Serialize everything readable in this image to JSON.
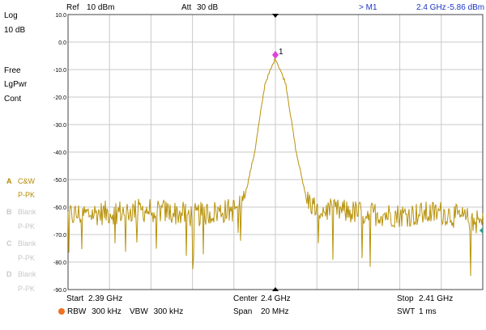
{
  "header": {
    "ref_label": "Ref",
    "ref_value": "10 dBm",
    "att_label": "Att",
    "att_value": "30 dB",
    "marker_label": "> M1",
    "marker_freq": "2.4 GHz",
    "marker_level": "-5.86 dBm"
  },
  "side_panel": {
    "scale_mode": "Log",
    "scale_div": "10 dB",
    "sweep_mode": "Free",
    "detector": "LgPwr",
    "sweep_cont": "Cont",
    "traces": [
      {
        "letter": "A",
        "mode": "C&W",
        "detector": "P-PK",
        "active": true
      },
      {
        "letter": "B",
        "mode": "Blank",
        "detector": "P-PK",
        "active": false
      },
      {
        "letter": "C",
        "mode": "Blank",
        "detector": "P-PK",
        "active": false
      },
      {
        "letter": "D",
        "mode": "Blank",
        "detector": "P-PK",
        "active": false
      }
    ]
  },
  "footer": {
    "start_label": "Start",
    "start_value": "2.39 GHz",
    "center_label": "Center",
    "center_value": "2.4 GHz",
    "stop_label": "Stop",
    "stop_value": "2.41 GHz",
    "rbw_label": "RBW",
    "rbw_value": "300 kHz",
    "vbw_label": "VBW",
    "vbw_value": "300 kHz",
    "span_label": "Span",
    "span_value": "20 MHz",
    "swt_label": "SWT",
    "swt_value": "1 ms"
  },
  "colors": {
    "trace": "#b8920a",
    "grid": "#c9c9c9",
    "frame": "#444444",
    "marker": "#e040e0",
    "marker_accent": "#1a35c8"
  },
  "chart_data": {
    "type": "line",
    "x_unit": "GHz",
    "y_unit": "dBm",
    "xlim": [
      2.39,
      2.41
    ],
    "ylim": [
      -90,
      10
    ],
    "y_ticks": [
      "10.0",
      "0.0",
      "-10.0",
      "-20.0",
      "-30.0",
      "-40.0",
      "-50.0",
      "-60.0",
      "-70.0",
      "-80.0",
      "-90.0"
    ],
    "grid": true,
    "noise_floor_dbm": -62,
    "peak": {
      "x": 2.4,
      "y": -5.86
    },
    "marker": {
      "label": "1",
      "x": 2.4,
      "y": -5.86
    },
    "series": [
      {
        "x": [
          2.39,
          2.392,
          2.394,
          2.396,
          2.398,
          2.3985,
          2.399,
          2.3995,
          2.4,
          2.4005,
          2.401,
          2.4015,
          2.402,
          2.404,
          2.406,
          2.408,
          2.41
        ],
        "y": [
          -63,
          -62,
          -61,
          -63,
          -61,
          -57,
          -40,
          -15,
          -5.86,
          -15,
          -40,
          -57,
          -61,
          -62,
          -63,
          -62,
          -66
        ]
      }
    ]
  }
}
